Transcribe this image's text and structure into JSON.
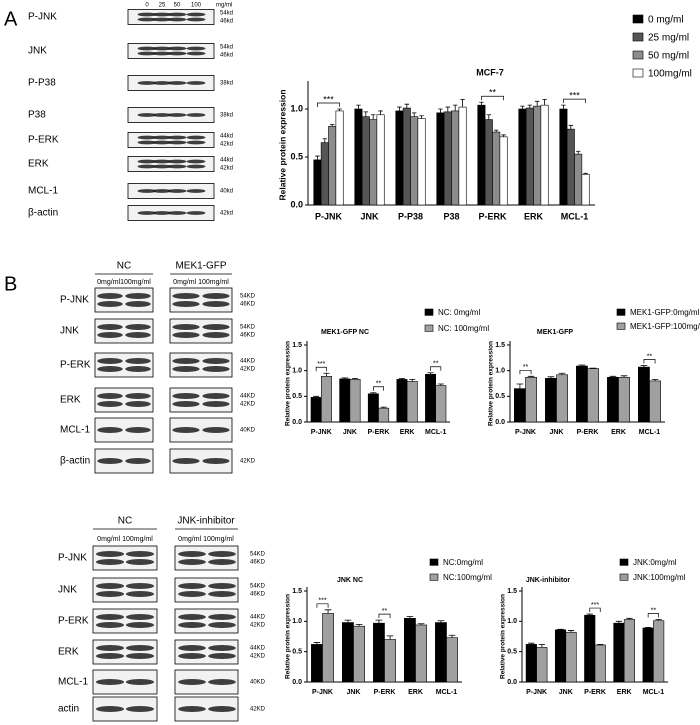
{
  "panel_labels": [
    "A",
    "B"
  ],
  "blots": [
    {
      "header": [
        "0",
        "25",
        "50",
        "100"
      ],
      "unit": "mg/ml",
      "rows": [
        {
          "label": "P-JNK",
          "markers": [
            "54kd",
            "46kd"
          ]
        },
        {
          "label": "JNK",
          "markers": [
            "54kd",
            "46kd"
          ]
        },
        {
          "label": "P-P38",
          "markers": [
            "38kd"
          ]
        },
        {
          "label": "P38",
          "markers": [
            "38kd"
          ]
        },
        {
          "label": "P-ERK",
          "markers": [
            "44kd",
            "42kd"
          ]
        },
        {
          "label": "ERK",
          "markers": [
            "44kd",
            "42kd"
          ]
        },
        {
          "label": "MCL-1",
          "markers": [
            "40kd"
          ]
        },
        {
          "label": "β-actin",
          "markers": [
            "42kd"
          ]
        }
      ]
    },
    {
      "groups": [
        "NC",
        "MEK1-GFP"
      ],
      "subheaders": [
        "0mg/ml100mg/ml",
        "0mg/ml 100mg/ml"
      ],
      "rows": [
        {
          "label": "P-JNK",
          "markers": [
            "54KD",
            "46KD"
          ]
        },
        {
          "label": "JNK",
          "markers": [
            "54KD",
            "46KD"
          ]
        },
        {
          "label": "P-ERK",
          "markers": [
            "44KD",
            "42KD"
          ]
        },
        {
          "label": "ERK",
          "markers": [
            "44KD",
            "42KD"
          ]
        },
        {
          "label": "MCL-1",
          "markers": [
            "40KD"
          ]
        },
        {
          "label": "β-actin",
          "markers": [
            "42KD"
          ]
        }
      ]
    },
    {
      "groups": [
        "NC",
        "JNK-inhibitor"
      ],
      "subheaders": [
        "0mg/ml   100mg/ml",
        "0mg/ml 100mg/ml"
      ],
      "rows": [
        {
          "label": "P-JNK",
          "markers": [
            "54KD",
            "46KD"
          ]
        },
        {
          "label": "JNK",
          "markers": [
            "54KD",
            "46KD"
          ]
        },
        {
          "label": "P-ERK",
          "markers": [
            "44KD",
            "42KD"
          ]
        },
        {
          "label": "ERK",
          "markers": [
            "44KD",
            "42KD"
          ]
        },
        {
          "label": "MCL-1",
          "markers": [
            "40KD"
          ]
        },
        {
          "label": "actin",
          "markers": [
            "42KD"
          ]
        }
      ]
    }
  ],
  "chart_data": [
    {
      "type": "bar",
      "title": "MCF-7",
      "y_label": "Relative protein expression",
      "categories": [
        "P-JNK",
        "JNK",
        "P-P38",
        "P38",
        "P-ERK",
        "ERK",
        "MCL-1"
      ],
      "series": [
        {
          "name": "0 mg/ml",
          "color": "#000000",
          "values": [
            0.47,
            1.0,
            0.98,
            0.96,
            1.04,
            1.0,
            1.0
          ],
          "errors": [
            0.04,
            0.04,
            0.04,
            0.04,
            0.03,
            0.03,
            0.04
          ]
        },
        {
          "name": "25 mg/ml",
          "color": "#555555",
          "values": [
            0.65,
            0.92,
            1.01,
            0.97,
            0.89,
            1.01,
            0.79
          ],
          "errors": [
            0.04,
            0.05,
            0.04,
            0.05,
            0.05,
            0.03,
            0.04
          ]
        },
        {
          "name": "50 mg/ml",
          "color": "#8c8c8c",
          "values": [
            0.82,
            0.89,
            0.92,
            0.98,
            0.76,
            1.03,
            0.53
          ],
          "errors": [
            0.02,
            0.05,
            0.04,
            0.06,
            0.02,
            0.05,
            0.03
          ]
        },
        {
          "name": "100mg/ml",
          "color": "#ffffff",
          "values": [
            0.98,
            0.94,
            0.9,
            1.02,
            0.71,
            1.04,
            0.32
          ],
          "errors": [
            0.02,
            0.04,
            0.03,
            0.08,
            0.02,
            0.06,
            0.01
          ]
        }
      ],
      "significance": [
        "***",
        null,
        null,
        null,
        "**",
        null,
        "***"
      ],
      "ylim": [
        0,
        1.25
      ],
      "yticks": [
        {
          "value": 0,
          "label": "0.0"
        },
        0.5,
        {
          "value": 1,
          "label": "1.0"
        }
      ]
    },
    {
      "type": "bar",
      "title": "MEK1-GFP NC",
      "y_label": "Relative protein expression",
      "categories": [
        "P-JNK",
        "JNK",
        "P-ERK",
        "ERK",
        "MCL-1"
      ],
      "series": [
        {
          "name": "NC: 0mg/ml",
          "color": "#000000",
          "values": [
            0.48,
            0.84,
            0.55,
            0.83,
            0.93
          ],
          "errors": [
            0.02,
            0.02,
            0.02,
            0.02,
            0.03
          ]
        },
        {
          "name": "NC: 100mg/ml",
          "color": "#a0a0a0",
          "values": [
            0.89,
            0.83,
            0.27,
            0.79,
            0.71
          ],
          "errors": [
            0.06,
            0.02,
            0.02,
            0.04,
            0.03
          ]
        }
      ],
      "significance": [
        "***",
        null,
        "**",
        null,
        "**"
      ],
      "ylim": [
        0,
        1.5
      ],
      "yticks": [
        {
          "value": 0,
          "label": "0.0"
        },
        0.5,
        {
          "value": 1,
          "label": "1.0"
        },
        1.5
      ]
    },
    {
      "type": "bar",
      "title": "MEK1-GFP",
      "y_label": "Relative protein expression",
      "categories": [
        "P-JNK",
        "JNK",
        "P-ERK",
        "ERK",
        "MCL-1"
      ],
      "series": [
        {
          "name": "MEK1-GFP:0mg/ml",
          "color": "#000000",
          "values": [
            0.65,
            0.85,
            1.09,
            0.87,
            1.07
          ],
          "errors": [
            0.09,
            0.03,
            0.02,
            0.02,
            0.03
          ]
        },
        {
          "name": "MEK1-GFP:100mg/ml",
          "color": "#a0a0a0",
          "values": [
            0.87,
            0.92,
            1.04,
            0.87,
            0.8
          ],
          "errors": [
            0.02,
            0.03,
            0.01,
            0.03,
            0.03
          ]
        }
      ],
      "significance": [
        "**",
        null,
        null,
        null,
        "**"
      ],
      "ylim": [
        0,
        1.5
      ],
      "yticks": [
        {
          "value": 0,
          "label": "0.0"
        },
        0.5,
        {
          "value": 1,
          "label": "1.0"
        },
        1.5
      ]
    },
    {
      "type": "bar",
      "title": "JNK NC",
      "y_label": "Relative protein expression",
      "categories": [
        "P-JNK",
        "JNK",
        "P-ERK",
        "ERK",
        "MCL-1"
      ],
      "series": [
        {
          "name": "NC:0mg/ml",
          "color": "#000000",
          "values": [
            0.62,
            0.98,
            0.97,
            1.05,
            0.98
          ],
          "errors": [
            0.03,
            0.04,
            0.05,
            0.03,
            0.03
          ]
        },
        {
          "name": "NC:100mg/ml",
          "color": "#a0a0a0",
          "values": [
            1.13,
            0.92,
            0.7,
            0.94,
            0.73
          ],
          "errors": [
            0.06,
            0.03,
            0.06,
            0.02,
            0.04
          ]
        }
      ],
      "significance": [
        "***",
        null,
        "**",
        null,
        null
      ],
      "ylim": [
        0,
        1.5
      ],
      "yticks": [
        {
          "value": 0,
          "label": "0.0"
        },
        0.5,
        {
          "value": 1,
          "label": "1.0"
        },
        1.5
      ]
    },
    {
      "type": "bar",
      "title": "JNK-inhibitor",
      "y_label": "Relative protein expression",
      "categories": [
        "P-JNK",
        "JNK",
        "P-ERK",
        "ERK",
        "MCL-1"
      ],
      "series": [
        {
          "name": "JNK:0mg/ml",
          "color": "#000000",
          "values": [
            0.62,
            0.86,
            1.1,
            0.97,
            0.89
          ],
          "errors": [
            0.02,
            0.01,
            0.02,
            0.03,
            0.01
          ]
        },
        {
          "name": "JNK:100mg/ml",
          "color": "#a0a0a0",
          "values": [
            0.57,
            0.82,
            0.61,
            1.03,
            1.01
          ],
          "errors": [
            0.05,
            0.03,
            0.01,
            0.02,
            0.02
          ]
        }
      ],
      "significance": [
        null,
        null,
        "***",
        null,
        "**"
      ],
      "ylim": [
        0,
        1.5
      ],
      "yticks": [
        {
          "value": 0,
          "label": "0.0"
        },
        0.5,
        {
          "value": 1,
          "label": "1.0"
        },
        1.5
      ]
    }
  ]
}
